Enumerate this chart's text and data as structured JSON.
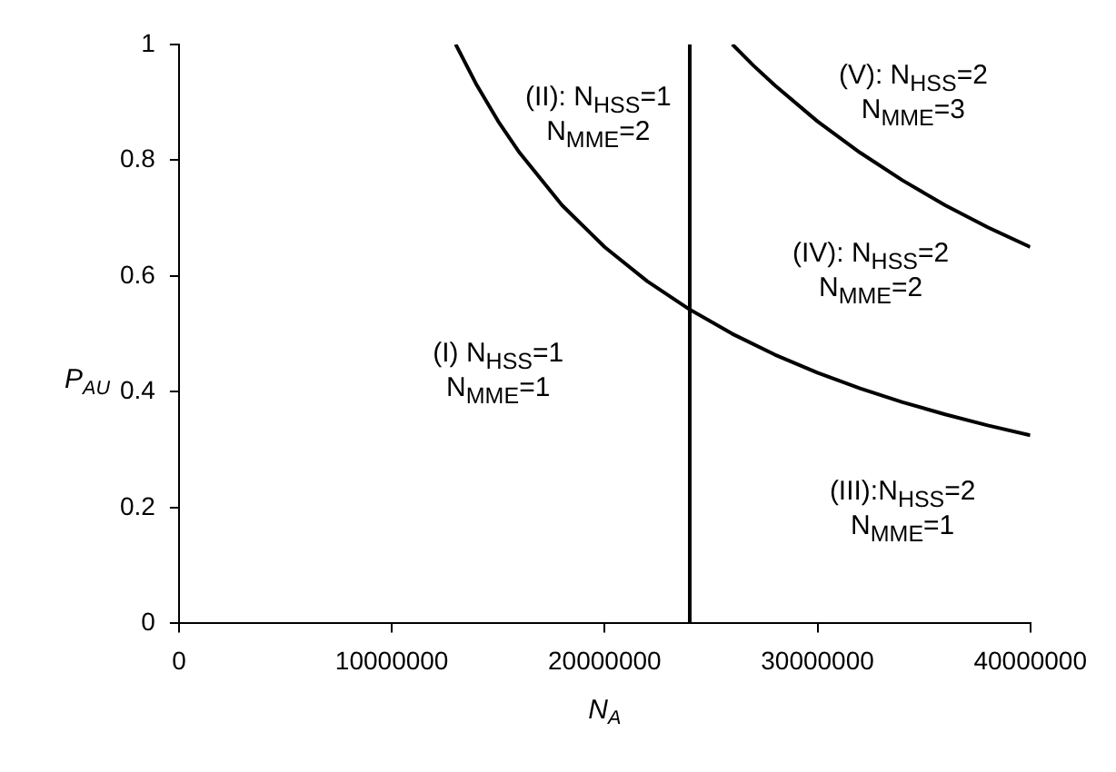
{
  "chart_data": {
    "type": "line",
    "xlabel": "N$_{A}$",
    "ylabel": "P$_{AU}$",
    "xlim": [
      0,
      40000000
    ],
    "xticks": [
      0,
      10000000,
      20000000,
      30000000,
      40000000
    ],
    "ylim": [
      0,
      1
    ],
    "yticks": [
      0,
      0.2,
      0.4,
      0.6,
      0.8,
      1
    ],
    "grid": false,
    "legend": false,
    "marker": "none",
    "line_style": "solid",
    "series": [
      {
        "color": "#000000",
        "x": [
          13000000,
          14000000,
          15000000,
          16000000,
          18000000,
          20000000,
          22000000,
          24000000,
          26000000,
          28000000,
          30000000,
          32000000,
          34000000,
          36000000,
          38000000,
          40000000
        ],
        "values": [
          1,
          0.929,
          0.867,
          0.813,
          0.722,
          0.65,
          0.591,
          0.542,
          0.5,
          0.464,
          0.433,
          0.406,
          0.382,
          0.361,
          0.342,
          0.325
        ]
      },
      {
        "color": "#000000",
        "x": [
          26000000,
          27000000,
          28000000,
          30000000,
          32000000,
          34000000,
          36000000,
          38000000,
          40000000
        ],
        "values": [
          1,
          0.963,
          0.929,
          0.867,
          0.813,
          0.765,
          0.722,
          0.684,
          0.65
        ]
      },
      {
        "color": "#000000",
        "x": [
          24000000,
          24000000
        ],
        "values": [
          0,
          1
        ]
      }
    ],
    "annotations": [
      "(I) N$_{HSS}$=1",
      "N$_{MME}$=1",
      "(II): N$_{HSS}$=1",
      "N$_{MME}$=2",
      "(V): N$_{HSS}$=2",
      "N$_{MME}$=3",
      "(IV): N$_{HSS}$=2",
      "N$_{MME}$=2",
      "(III):N$_{HSS}$=2",
      "N$_{MME}$=1"
    ]
  }
}
